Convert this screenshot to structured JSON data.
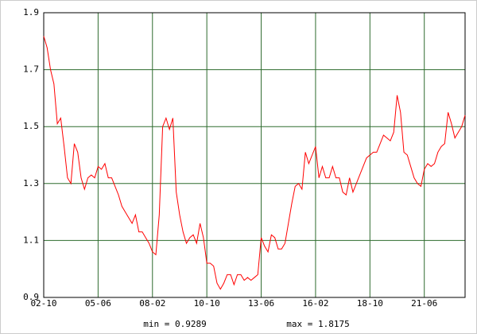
{
  "chart_data": {
    "type": "line",
    "annotations": [
      "min = 0.9289",
      "max = 1.8175"
    ],
    "categories": [
      "02-10",
      null,
      null,
      null,
      null,
      null,
      null,
      null,
      null,
      null,
      null,
      null,
      null,
      null,
      null,
      null,
      "05-06",
      null,
      null,
      null,
      null,
      null,
      null,
      null,
      null,
      null,
      null,
      null,
      null,
      null,
      null,
      null,
      "08-02",
      null,
      null,
      null,
      null,
      null,
      null,
      null,
      null,
      null,
      null,
      null,
      null,
      null,
      null,
      null,
      "10-10",
      null,
      null,
      null,
      null,
      null,
      null,
      null,
      null,
      null,
      null,
      null,
      null,
      null,
      null,
      null,
      "13-06",
      null,
      null,
      null,
      null,
      null,
      null,
      null,
      null,
      null,
      null,
      null,
      null,
      null,
      null,
      null,
      "16-02",
      null,
      null,
      null,
      null,
      null,
      null,
      null,
      null,
      null,
      null,
      null,
      null,
      null,
      null,
      null,
      "18-10",
      null,
      null,
      null,
      null,
      null,
      null,
      null,
      null,
      null,
      null,
      null,
      null,
      null,
      null,
      null,
      "21-06",
      null,
      null,
      null,
      null,
      null,
      null,
      null,
      null,
      null,
      null,
      null,
      null
    ],
    "values": [
      1.8175,
      1.777,
      1.7,
      1.65,
      1.51,
      1.53,
      1.43,
      1.32,
      1.3,
      1.44,
      1.41,
      1.32,
      1.28,
      1.32,
      1.33,
      1.32,
      1.36,
      1.35,
      1.37,
      1.32,
      1.32,
      1.29,
      1.26,
      1.22,
      1.2,
      1.18,
      1.16,
      1.19,
      1.13,
      1.13,
      1.11,
      1.09,
      1.06,
      1.05,
      1.19,
      1.5,
      1.53,
      1.49,
      1.53,
      1.27,
      1.19,
      1.13,
      1.09,
      1.11,
      1.12,
      1.09,
      1.16,
      1.11,
      1.02,
      1.02,
      1.01,
      0.95,
      0.9289,
      0.95,
      0.98,
      0.98,
      0.945,
      0.98,
      0.98,
      0.96,
      0.97,
      0.96,
      0.97,
      0.98,
      1.11,
      1.08,
      1.06,
      1.12,
      1.11,
      1.07,
      1.07,
      1.09,
      1.16,
      1.23,
      1.29,
      1.3,
      1.28,
      1.41,
      1.37,
      1.4,
      1.43,
      1.32,
      1.36,
      1.32,
      1.32,
      1.36,
      1.32,
      1.32,
      1.27,
      1.26,
      1.32,
      1.27,
      1.3,
      1.33,
      1.36,
      1.39,
      1.4,
      1.41,
      1.41,
      1.44,
      1.47,
      1.46,
      1.45,
      1.48,
      1.61,
      1.55,
      1.41,
      1.4,
      1.36,
      1.32,
      1.3,
      1.29,
      1.35,
      1.37,
      1.36,
      1.37,
      1.41,
      1.43,
      1.44,
      1.55,
      1.51,
      1.46,
      1.48,
      1.5,
      1.54
    ],
    "color": "#ff0000",
    "grid_color": "#2e6b2e",
    "ylim": [
      0.9,
      1.9
    ],
    "yticks": [
      0.9,
      1.1,
      1.3,
      1.5,
      1.7,
      1.9
    ],
    "grid": true
  }
}
